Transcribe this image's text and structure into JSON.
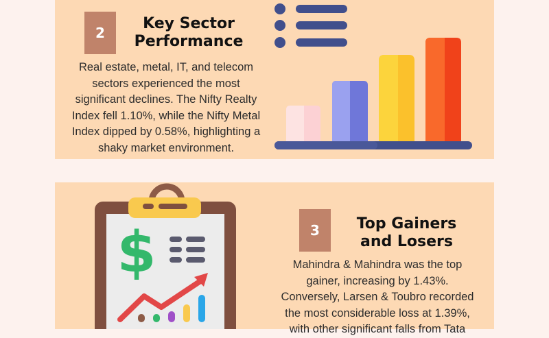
{
  "section2": {
    "number": "2",
    "title_lines": [
      "Key Sector",
      "Performance"
    ],
    "body_lines": [
      "Real estate, metal, IT, and telecom",
      "sectors experienced the most",
      "significant declines. The Nifty Realty",
      "Index fell 1.10%, while the Nifty Metal",
      "Index dipped by 0.58%, highlighting a",
      "shaky market environment."
    ]
  },
  "section3": {
    "number": "3",
    "title_lines": [
      "Top Gainers",
      "and Losers"
    ],
    "body_lines": [
      "Mahindra & Mahindra was the top",
      "gainer, increasing by 1.43%.",
      "Conversely, Larsen & Toubro recorded",
      "the most considerable loss at 1.39%,",
      "with other significant falls from Tata"
    ]
  },
  "illustrations": {
    "bar_chart_icon": "bar-chart-with-list-icon",
    "clipboard_icon": "clipboard-dollar-growth-icon"
  },
  "colors": {
    "page_background": "#fdf2ee",
    "card_background": "#fdd9b4",
    "badge": "#c0836a",
    "navy": "#414f8c",
    "bar_pink": "#fcd1d4",
    "bar_purple": "#8088e6",
    "bar_yellow": "#fbc12c",
    "bar_orange": "#f4521c"
  }
}
